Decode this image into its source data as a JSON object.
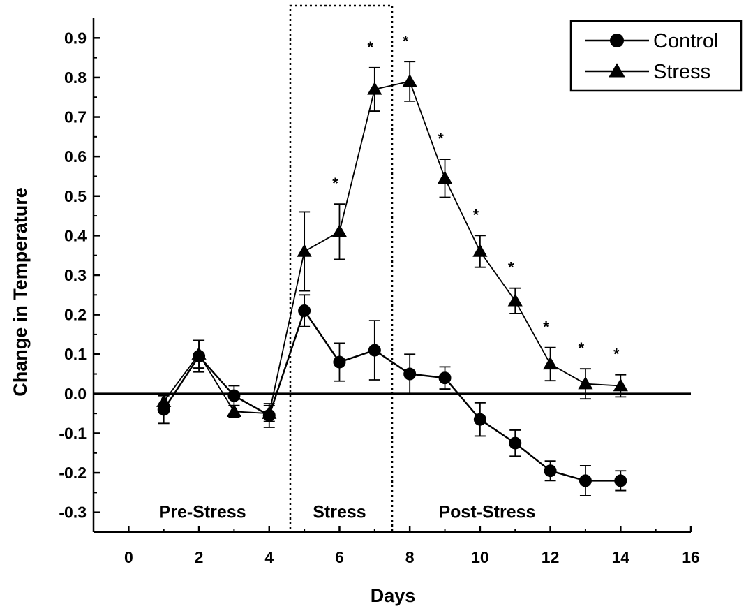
{
  "chart_data": {
    "type": "line",
    "title": "",
    "xlabel": "Days",
    "ylabel": "Change in Temperature",
    "xlim": [
      -1,
      16
    ],
    "ylim": [
      -0.35,
      0.95
    ],
    "xticks": [
      0,
      2,
      4,
      6,
      8,
      10,
      12,
      14,
      16
    ],
    "yticks": [
      -0.3,
      -0.2,
      -0.1,
      0.0,
      0.1,
      0.2,
      0.3,
      0.4,
      0.5,
      0.6,
      0.7,
      0.8,
      0.9
    ],
    "ytick_labels": [
      "-0.3",
      "-0.2",
      "-0.1",
      "0.0",
      "0.1",
      "0.2",
      "0.3",
      "0.4",
      "0.5",
      "0.6",
      "0.7",
      "0.8",
      "0.9"
    ],
    "grid": false,
    "legend_position": "top-right",
    "baseline_y": 0.0,
    "regions": [
      {
        "label": "Pre-Stress",
        "label_x": 2.1
      },
      {
        "label": "Stress",
        "label_x": 6.0,
        "x_start": 4.6,
        "x_end": 7.5,
        "boxed": true
      },
      {
        "label": "Post-Stress",
        "label_x": 10.2
      }
    ],
    "series": [
      {
        "name": "Control",
        "marker": "circle",
        "x": [
          1,
          2,
          3,
          4,
          5,
          6,
          7,
          8,
          9,
          10,
          11,
          12,
          13,
          14
        ],
        "y": [
          -0.04,
          0.095,
          -0.005,
          -0.055,
          0.21,
          0.08,
          0.11,
          0.05,
          0.04,
          -0.065,
          -0.125,
          -0.195,
          -0.22,
          -0.22
        ],
        "err": [
          0.035,
          0.04,
          0.025,
          0.03,
          0.04,
          0.048,
          0.075,
          0.05,
          0.028,
          0.042,
          0.033,
          0.025,
          0.038,
          0.025
        ]
      },
      {
        "name": "Stress",
        "marker": "triangle",
        "x": [
          1,
          2,
          3,
          4,
          5,
          6,
          7,
          8,
          9,
          10,
          11,
          12,
          13,
          14
        ],
        "y": [
          -0.02,
          0.1,
          -0.045,
          -0.05,
          0.36,
          0.41,
          0.77,
          0.79,
          0.545,
          0.36,
          0.235,
          0.075,
          0.025,
          0.02
        ],
        "err": [
          0.02,
          0.035,
          0.015,
          0.02,
          0.1,
          0.07,
          0.055,
          0.05,
          0.048,
          0.04,
          0.032,
          0.042,
          0.038,
          0.028
        ],
        "significant_days": [
          6,
          7,
          8,
          9,
          10,
          11,
          12,
          13,
          14
        ],
        "significance_marker": "*"
      }
    ]
  }
}
